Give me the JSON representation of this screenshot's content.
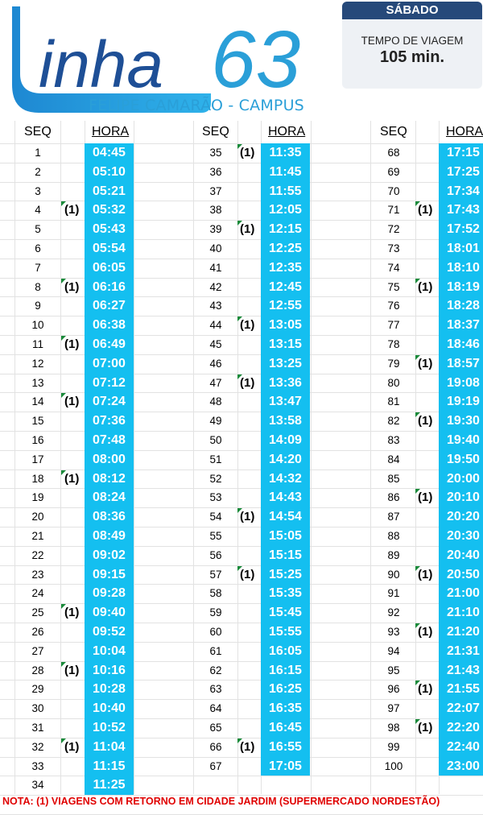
{
  "header": {
    "logo_text": "inha",
    "logo_number": "63",
    "route": "FELIPE CAMARÃO - CAMPUS"
  },
  "info": {
    "day": "SÁBADO",
    "travel_time_label": "TEMPO DE VIAGEM",
    "travel_time_value": "105 min."
  },
  "table": {
    "seq_header": "SEQ",
    "time_header": "HORA",
    "columns": [
      [
        {
          "seq": "1",
          "time": "04:45",
          "flag": ""
        },
        {
          "seq": "2",
          "time": "05:10",
          "flag": ""
        },
        {
          "seq": "3",
          "time": "05:21",
          "flag": ""
        },
        {
          "seq": "4",
          "time": "05:32",
          "flag": "(1)"
        },
        {
          "seq": "5",
          "time": "05:43",
          "flag": ""
        },
        {
          "seq": "6",
          "time": "05:54",
          "flag": ""
        },
        {
          "seq": "7",
          "time": "06:05",
          "flag": ""
        },
        {
          "seq": "8",
          "time": "06:16",
          "flag": "(1)"
        },
        {
          "seq": "9",
          "time": "06:27",
          "flag": ""
        },
        {
          "seq": "10",
          "time": "06:38",
          "flag": ""
        },
        {
          "seq": "11",
          "time": "06:49",
          "flag": "(1)"
        },
        {
          "seq": "12",
          "time": "07:00",
          "flag": ""
        },
        {
          "seq": "13",
          "time": "07:12",
          "flag": ""
        },
        {
          "seq": "14",
          "time": "07:24",
          "flag": "(1)"
        },
        {
          "seq": "15",
          "time": "07:36",
          "flag": ""
        },
        {
          "seq": "16",
          "time": "07:48",
          "flag": ""
        },
        {
          "seq": "17",
          "time": "08:00",
          "flag": ""
        },
        {
          "seq": "18",
          "time": "08:12",
          "flag": "(1)"
        },
        {
          "seq": "19",
          "time": "08:24",
          "flag": ""
        },
        {
          "seq": "20",
          "time": "08:36",
          "flag": ""
        },
        {
          "seq": "21",
          "time": "08:49",
          "flag": ""
        },
        {
          "seq": "22",
          "time": "09:02",
          "flag": ""
        },
        {
          "seq": "23",
          "time": "09:15",
          "flag": ""
        },
        {
          "seq": "24",
          "time": "09:28",
          "flag": ""
        },
        {
          "seq": "25",
          "time": "09:40",
          "flag": "(1)"
        },
        {
          "seq": "26",
          "time": "09:52",
          "flag": ""
        },
        {
          "seq": "27",
          "time": "10:04",
          "flag": ""
        },
        {
          "seq": "28",
          "time": "10:16",
          "flag": "(1)"
        },
        {
          "seq": "29",
          "time": "10:28",
          "flag": ""
        },
        {
          "seq": "30",
          "time": "10:40",
          "flag": ""
        },
        {
          "seq": "31",
          "time": "10:52",
          "flag": ""
        },
        {
          "seq": "32",
          "time": "11:04",
          "flag": "(1)"
        },
        {
          "seq": "33",
          "time": "11:15",
          "flag": ""
        },
        {
          "seq": "34",
          "time": "11:25",
          "flag": ""
        }
      ],
      [
        {
          "seq": "35",
          "time": "11:35",
          "flag": "(1)"
        },
        {
          "seq": "36",
          "time": "11:45",
          "flag": ""
        },
        {
          "seq": "37",
          "time": "11:55",
          "flag": ""
        },
        {
          "seq": "38",
          "time": "12:05",
          "flag": ""
        },
        {
          "seq": "39",
          "time": "12:15",
          "flag": "(1)"
        },
        {
          "seq": "40",
          "time": "12:25",
          "flag": ""
        },
        {
          "seq": "41",
          "time": "12:35",
          "flag": ""
        },
        {
          "seq": "42",
          "time": "12:45",
          "flag": ""
        },
        {
          "seq": "43",
          "time": "12:55",
          "flag": ""
        },
        {
          "seq": "44",
          "time": "13:05",
          "flag": "(1)"
        },
        {
          "seq": "45",
          "time": "13:15",
          "flag": ""
        },
        {
          "seq": "46",
          "time": "13:25",
          "flag": ""
        },
        {
          "seq": "47",
          "time": "13:36",
          "flag": "(1)"
        },
        {
          "seq": "48",
          "time": "13:47",
          "flag": ""
        },
        {
          "seq": "49",
          "time": "13:58",
          "flag": ""
        },
        {
          "seq": "50",
          "time": "14:09",
          "flag": ""
        },
        {
          "seq": "51",
          "time": "14:20",
          "flag": ""
        },
        {
          "seq": "52",
          "time": "14:32",
          "flag": ""
        },
        {
          "seq": "53",
          "time": "14:43",
          "flag": ""
        },
        {
          "seq": "54",
          "time": "14:54",
          "flag": "(1)"
        },
        {
          "seq": "55",
          "time": "15:05",
          "flag": ""
        },
        {
          "seq": "56",
          "time": "15:15",
          "flag": ""
        },
        {
          "seq": "57",
          "time": "15:25",
          "flag": "(1)"
        },
        {
          "seq": "58",
          "time": "15:35",
          "flag": ""
        },
        {
          "seq": "59",
          "time": "15:45",
          "flag": ""
        },
        {
          "seq": "60",
          "time": "15:55",
          "flag": ""
        },
        {
          "seq": "61",
          "time": "16:05",
          "flag": ""
        },
        {
          "seq": "62",
          "time": "16:15",
          "flag": ""
        },
        {
          "seq": "63",
          "time": "16:25",
          "flag": ""
        },
        {
          "seq": "64",
          "time": "16:35",
          "flag": ""
        },
        {
          "seq": "65",
          "time": "16:45",
          "flag": ""
        },
        {
          "seq": "66",
          "time": "16:55",
          "flag": "(1)"
        },
        {
          "seq": "67",
          "time": "17:05",
          "flag": ""
        }
      ],
      [
        {
          "seq": "68",
          "time": "17:15",
          "flag": ""
        },
        {
          "seq": "69",
          "time": "17:25",
          "flag": ""
        },
        {
          "seq": "70",
          "time": "17:34",
          "flag": ""
        },
        {
          "seq": "71",
          "time": "17:43",
          "flag": "(1)"
        },
        {
          "seq": "72",
          "time": "17:52",
          "flag": ""
        },
        {
          "seq": "73",
          "time": "18:01",
          "flag": ""
        },
        {
          "seq": "74",
          "time": "18:10",
          "flag": ""
        },
        {
          "seq": "75",
          "time": "18:19",
          "flag": "(1)"
        },
        {
          "seq": "76",
          "time": "18:28",
          "flag": ""
        },
        {
          "seq": "77",
          "time": "18:37",
          "flag": ""
        },
        {
          "seq": "78",
          "time": "18:46",
          "flag": ""
        },
        {
          "seq": "79",
          "time": "18:57",
          "flag": "(1)"
        },
        {
          "seq": "80",
          "time": "19:08",
          "flag": ""
        },
        {
          "seq": "81",
          "time": "19:19",
          "flag": ""
        },
        {
          "seq": "82",
          "time": "19:30",
          "flag": "(1)"
        },
        {
          "seq": "83",
          "time": "19:40",
          "flag": ""
        },
        {
          "seq": "84",
          "time": "19:50",
          "flag": ""
        },
        {
          "seq": "85",
          "time": "20:00",
          "flag": ""
        },
        {
          "seq": "86",
          "time": "20:10",
          "flag": "(1)"
        },
        {
          "seq": "87",
          "time": "20:20",
          "flag": ""
        },
        {
          "seq": "88",
          "time": "20:30",
          "flag": ""
        },
        {
          "seq": "89",
          "time": "20:40",
          "flag": ""
        },
        {
          "seq": "90",
          "time": "20:50",
          "flag": "(1)"
        },
        {
          "seq": "91",
          "time": "21:00",
          "flag": ""
        },
        {
          "seq": "92",
          "time": "21:10",
          "flag": ""
        },
        {
          "seq": "93",
          "time": "21:20",
          "flag": "(1)"
        },
        {
          "seq": "94",
          "time": "21:31",
          "flag": ""
        },
        {
          "seq": "95",
          "time": "21:43",
          "flag": ""
        },
        {
          "seq": "96",
          "time": "21:55",
          "flag": "(1)"
        },
        {
          "seq": "97",
          "time": "22:07",
          "flag": ""
        },
        {
          "seq": "98",
          "time": "22:20",
          "flag": "(1)"
        },
        {
          "seq": "99",
          "time": "22:40",
          "flag": ""
        },
        {
          "seq": "100",
          "time": "23:00",
          "flag": ""
        }
      ]
    ]
  },
  "footer": {
    "note": "NOTA: (1) VIAGENS COM RETORNO EM CIDADE JARDIM (SUPERMERCADO NORDESTÃO)"
  },
  "colors": {
    "time_cell": "#14bff0",
    "logo_blue": "#1e4f96",
    "logo_light": "#2a9fd8",
    "day_bar": "#26497a",
    "note_red": "#e00000"
  }
}
